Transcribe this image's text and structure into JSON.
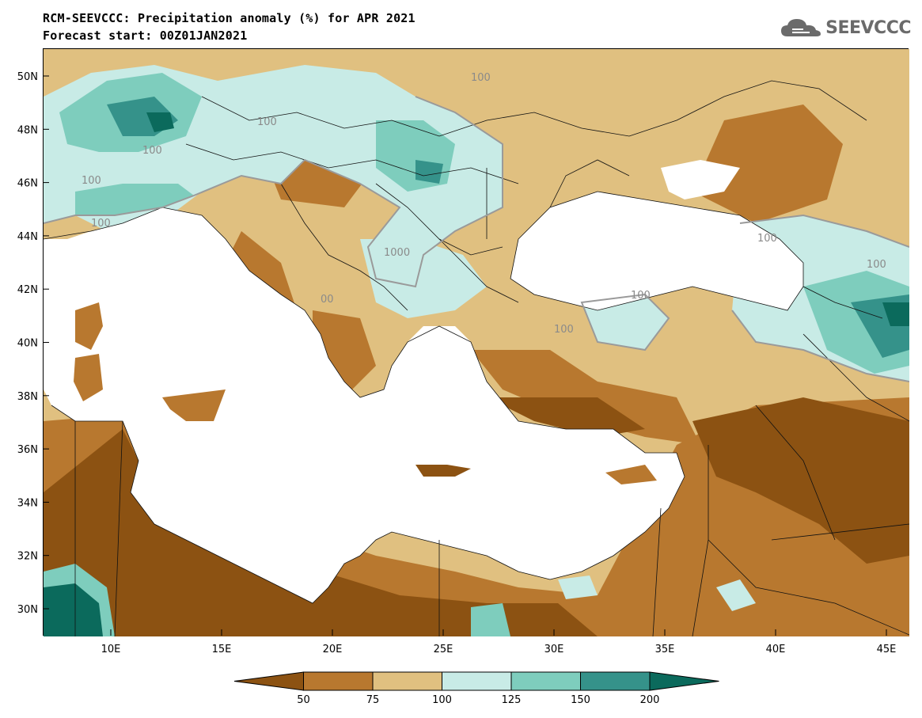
{
  "header": {
    "title_line1": "RCM-SEEVCCC: Precipitation anomaly (%) for APR 2021",
    "title_line2": "Forecast start: 00Z01JAN2021",
    "logo_text": "SEEVCCC"
  },
  "map": {
    "lat_labels": [
      "50N",
      "48N",
      "46N",
      "44N",
      "42N",
      "40N",
      "38N",
      "36N",
      "34N",
      "32N",
      "30N"
    ],
    "lon_labels": [
      "10E",
      "15E",
      "20E",
      "25E",
      "30E",
      "35E",
      "40E",
      "45E"
    ],
    "contour_labels": [
      "100",
      "100",
      "100",
      "100",
      "100",
      "100",
      "1000",
      "00",
      "100",
      "100",
      "100"
    ]
  },
  "legend": {
    "labels": [
      "50",
      "75",
      "100",
      "125",
      "150",
      "200"
    ],
    "colors": [
      "#8c5212",
      "#b8782f",
      "#e0c080",
      "#c8ebe6",
      "#7ecdbd",
      "#35928a",
      "#0b6a5c"
    ]
  },
  "colors": {
    "sea": "#ffffff",
    "dry_strong": "#8c5212",
    "dry": "#b8782f",
    "dry_light": "#e0c080",
    "wet_light": "#c8ebe6",
    "wet": "#7ecdbd",
    "wet_strong": "#35928a",
    "wet_extreme": "#0b6a5c"
  }
}
